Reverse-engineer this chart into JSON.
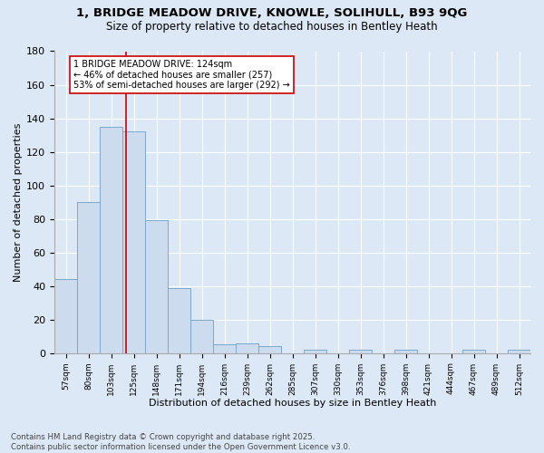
{
  "title1": "1, BRIDGE MEADOW DRIVE, KNOWLE, SOLIHULL, B93 9QG",
  "title2": "Size of property relative to detached houses in Bentley Heath",
  "xlabel": "Distribution of detached houses by size in Bentley Heath",
  "ylabel": "Number of detached properties",
  "bar_labels": [
    "57sqm",
    "80sqm",
    "103sqm",
    "125sqm",
    "148sqm",
    "171sqm",
    "194sqm",
    "216sqm",
    "239sqm",
    "262sqm",
    "285sqm",
    "307sqm",
    "330sqm",
    "353sqm",
    "376sqm",
    "398sqm",
    "421sqm",
    "444sqm",
    "467sqm",
    "489sqm",
    "512sqm"
  ],
  "bar_values": [
    44,
    90,
    135,
    132,
    79,
    39,
    20,
    5,
    6,
    4,
    0,
    2,
    0,
    2,
    0,
    2,
    0,
    0,
    2,
    0,
    2
  ],
  "bar_color": "#ccdcee",
  "bar_edge_color": "#7aa8cc",
  "vline_x": 2.65,
  "vline_color": "#cc0000",
  "annotation_text": "1 BRIDGE MEADOW DRIVE: 124sqm\n← 46% of detached houses are smaller (257)\n53% of semi-detached houses are larger (292) →",
  "annotation_box_color": "#ffffff",
  "annotation_box_edge": "#cc0000",
  "background_color": "#dce8f5",
  "grid_color": "#ffffff",
  "footnote": "Contains HM Land Registry data © Crown copyright and database right 2025.\nContains public sector information licensed under the Open Government Licence v3.0.",
  "ylim": [
    0,
    180
  ],
  "yticks": [
    0,
    20,
    40,
    60,
    80,
    100,
    120,
    140,
    160,
    180
  ],
  "figsize": [
    6.0,
    5.0
  ],
  "dpi": 100
}
